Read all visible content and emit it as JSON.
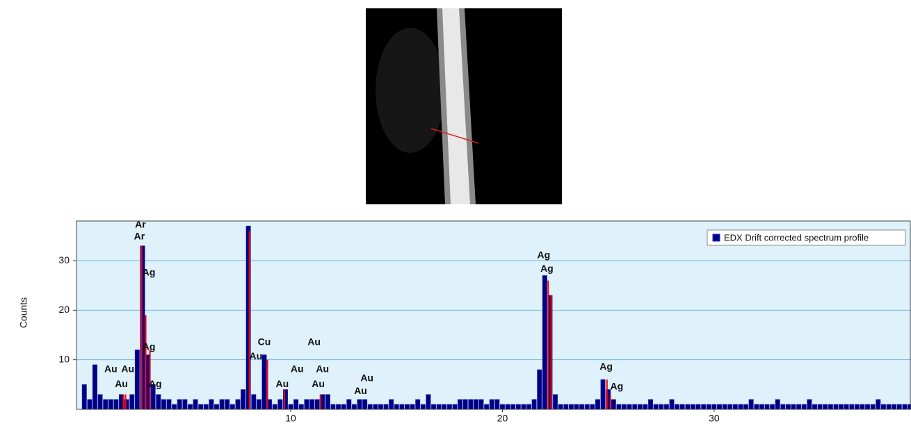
{
  "chart_data": {
    "type": "bar",
    "y_label": "Counts",
    "series": [
      {
        "name": "EDX Drift corrected spectrum profile",
        "color": "#000080",
        "x": [
          0.25,
          0.5,
          0.75,
          1.0,
          1.25,
          1.5,
          1.75,
          2.0,
          2.25,
          2.5,
          2.75,
          3.0,
          3.25,
          3.5,
          3.75,
          4.0,
          4.25,
          4.5,
          4.75,
          5.0,
          5.25,
          5.5,
          5.75,
          6.0,
          6.25,
          6.5,
          6.75,
          7.0,
          7.25,
          7.5,
          7.75,
          8.0,
          8.25,
          8.5,
          8.75,
          9.0,
          9.25,
          9.5,
          9.75,
          10.0,
          10.25,
          10.5,
          10.75,
          11.0,
          11.25,
          11.5,
          11.75,
          12.0,
          12.25,
          12.5,
          12.75,
          13.0,
          13.25,
          13.5,
          13.75,
          14.0,
          14.25,
          14.5,
          14.75,
          15.0,
          15.25,
          15.5,
          15.75,
          16.0,
          16.25,
          16.5,
          16.75,
          17.0,
          17.25,
          17.5,
          17.75,
          18.0,
          18.25,
          18.5,
          18.75,
          19.0,
          19.25,
          19.5,
          19.75,
          20.0,
          20.25,
          20.5,
          20.75,
          21.0,
          21.25,
          21.5,
          21.75,
          22.0,
          22.25,
          22.5,
          22.75,
          23.0,
          23.25,
          23.5,
          23.75,
          24.0,
          24.25,
          24.5,
          24.75,
          25.0,
          25.25,
          25.5,
          25.75,
          26.0,
          26.25,
          26.5,
          26.75,
          27.0,
          27.25,
          27.5,
          27.75,
          28.0,
          28.25,
          28.5,
          28.75,
          29.0,
          29.25,
          29.5,
          29.75,
          30.0,
          30.25,
          30.5,
          30.75,
          31.0,
          31.25,
          31.5,
          31.75,
          32.0,
          32.25,
          32.5,
          32.75,
          33.0,
          33.25,
          33.5,
          33.75,
          34.0,
          34.25,
          34.5,
          34.75,
          35.0,
          35.25,
          35.5,
          35.75,
          36.0,
          36.25,
          36.5,
          36.75,
          37.0,
          37.25,
          37.5,
          37.75,
          38.0,
          38.25,
          38.5,
          38.75,
          39.0,
          39.25
        ],
        "values": [
          5,
          2,
          9,
          3,
          2,
          2,
          2,
          3,
          2,
          3,
          12,
          33,
          11,
          5,
          3,
          2,
          2,
          1,
          2,
          2,
          1,
          2,
          1,
          1,
          2,
          1,
          2,
          2,
          1,
          2,
          4,
          37,
          3,
          2,
          11,
          2,
          1,
          2,
          4,
          1,
          2,
          1,
          2,
          2,
          2,
          3,
          3,
          1,
          1,
          1,
          2,
          1,
          2,
          2,
          1,
          1,
          1,
          1,
          2,
          1,
          1,
          1,
          1,
          2,
          1,
          3,
          1,
          1,
          1,
          1,
          1,
          2,
          2,
          2,
          2,
          2,
          1,
          2,
          2,
          1,
          1,
          1,
          1,
          1,
          1,
          2,
          8,
          27,
          23,
          3,
          1,
          1,
          1,
          1,
          1,
          1,
          1,
          2,
          6,
          4,
          2,
          1,
          1,
          1,
          1,
          1,
          1,
          2,
          1,
          1,
          1,
          2,
          1,
          1,
          1,
          1,
          1,
          1,
          1,
          1,
          1,
          1,
          1,
          1,
          1,
          1,
          2,
          1,
          1,
          1,
          1,
          2,
          1,
          1,
          1,
          1,
          1,
          2,
          1,
          1,
          1,
          1,
          1,
          1,
          1,
          1,
          1,
          1,
          1,
          1,
          2,
          1,
          1,
          1,
          1,
          1,
          1
        ]
      }
    ],
    "peak_markers": {
      "color": "#ff0000",
      "x": [
        2.1,
        2.2,
        2.96,
        3.15,
        3.35,
        8.05,
        8.9,
        9.7,
        11.4,
        22.16,
        22.3,
        24.94,
        25.1
      ],
      "values": [
        3,
        3,
        33,
        19,
        12,
        36,
        10,
        4,
        3,
        26,
        23,
        6,
        3
      ]
    },
    "annotations": [
      {
        "text": "Ar",
        "x": 2.9,
        "y": 37.2
      },
      {
        "text": "Ar",
        "x": 2.85,
        "y": 34.8
      },
      {
        "text": "Ag",
        "x": 3.3,
        "y": 27.5
      },
      {
        "text": "Ag",
        "x": 3.3,
        "y": 12.5
      },
      {
        "text": "Ag",
        "x": 3.6,
        "y": 5
      },
      {
        "text": "Au",
        "x": 1.5,
        "y": 8
      },
      {
        "text": "Au",
        "x": 2.3,
        "y": 8
      },
      {
        "text": "Au",
        "x": 2.0,
        "y": 5
      },
      {
        "text": "Cu",
        "x": 8.75,
        "y": 13.5
      },
      {
        "text": "Au",
        "x": 8.35,
        "y": 10.6
      },
      {
        "text": "Au",
        "x": 9.6,
        "y": 5
      },
      {
        "text": "Au",
        "x": 10.3,
        "y": 8
      },
      {
        "text": "Au",
        "x": 11.1,
        "y": 13.5
      },
      {
        "text": "Au",
        "x": 11.5,
        "y": 8
      },
      {
        "text": "Au",
        "x": 11.3,
        "y": 5
      },
      {
        "text": "Au",
        "x": 13.6,
        "y": 6.2
      },
      {
        "text": "Au",
        "x": 13.3,
        "y": 3.6
      },
      {
        "text": "Ag",
        "x": 21.95,
        "y": 31
      },
      {
        "text": "Ag",
        "x": 22.1,
        "y": 28.3
      },
      {
        "text": "Ag",
        "x": 24.9,
        "y": 8.5
      },
      {
        "text": "Ag",
        "x": 25.4,
        "y": 4.5
      }
    ],
    "xlim": [
      -0.12,
      39.3
    ],
    "xticks": [
      10,
      20,
      30
    ],
    "ylim": [
      0,
      38
    ],
    "yticks": [
      10,
      20,
      30
    ],
    "grid": true,
    "legend": "upper right",
    "background": "#dff1fb"
  }
}
